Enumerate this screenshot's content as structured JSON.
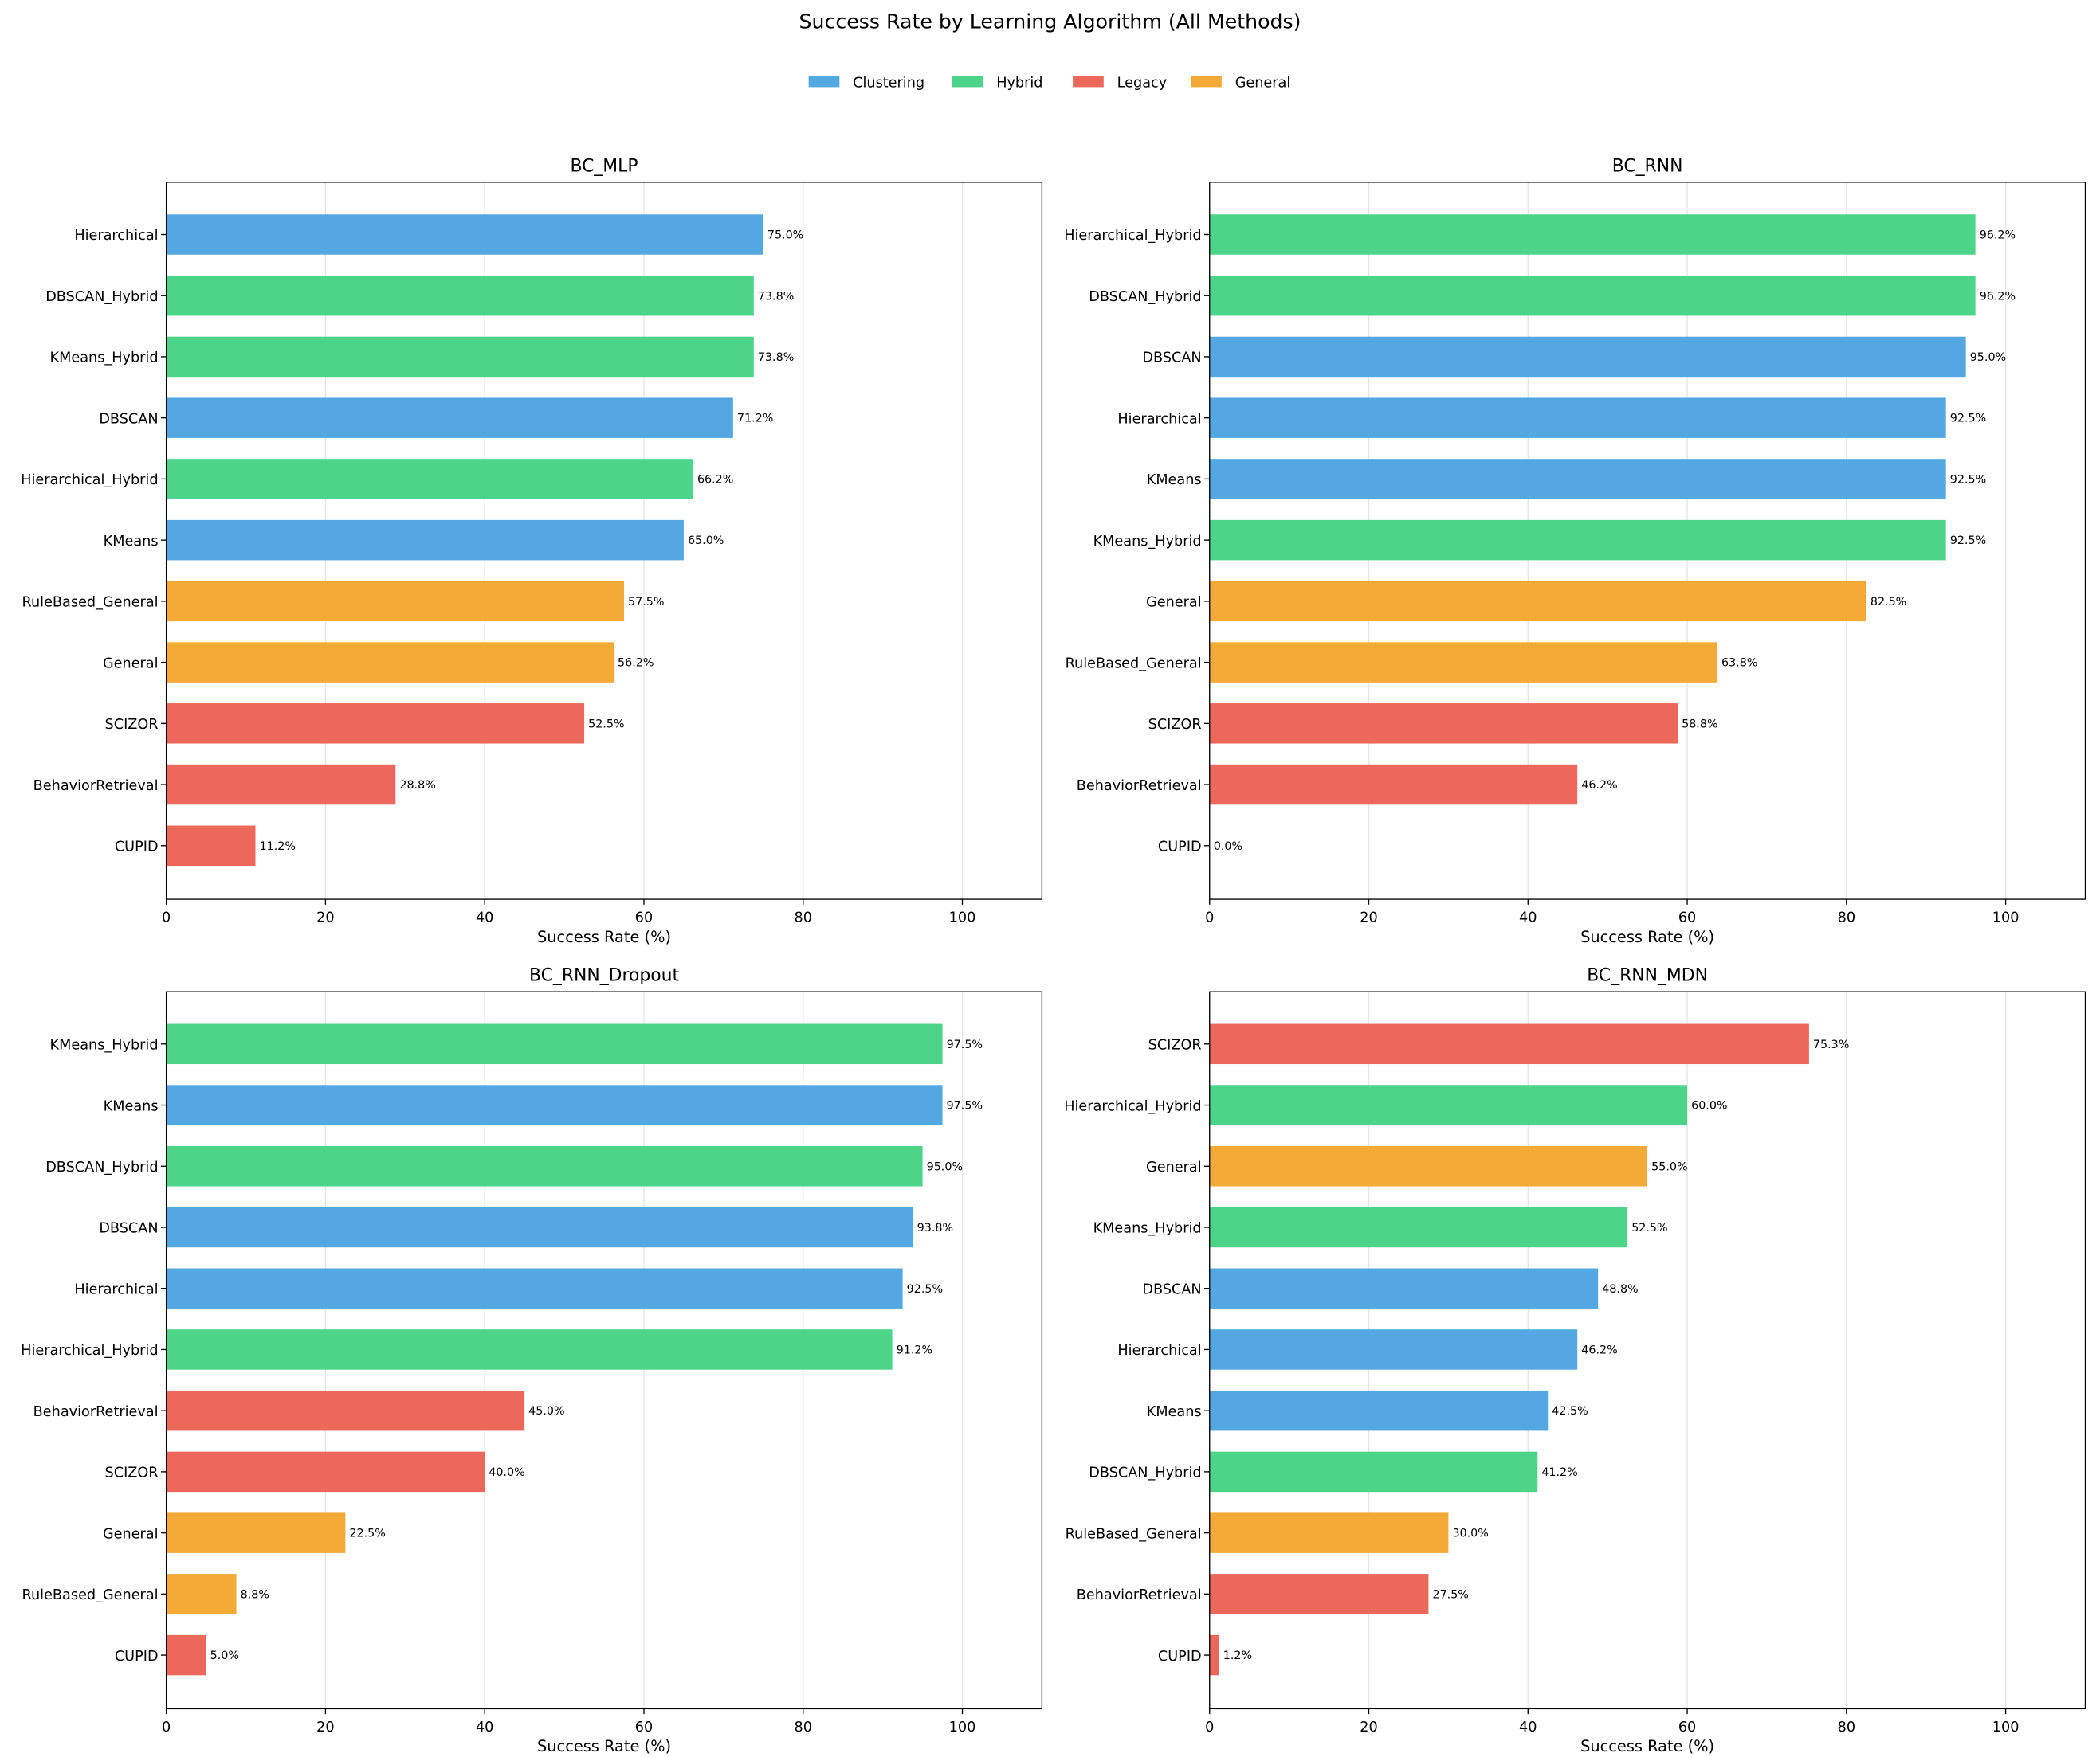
{
  "chart_data": {
    "type": "bar",
    "orientation": "horizontal",
    "title": "Success Rate by Learning Algorithm (All Methods)",
    "legend": {
      "placement": "top-center",
      "entries": [
        {
          "name": "Clustering",
          "color": "#54A8E1"
        },
        {
          "name": "Hybrid",
          "color": "#4CD488"
        },
        {
          "name": "Legacy",
          "color": "#EC685A"
        },
        {
          "name": "General",
          "color": "#F4AA36"
        }
      ]
    },
    "xlabel": "Success Rate (%)",
    "xlim": [
      0,
      110
    ],
    "xticks": [
      "0",
      "20",
      "40",
      "60",
      "80",
      "100"
    ],
    "grid": "x",
    "panels": [
      {
        "title": "BC_MLP",
        "bars": [
          {
            "label": "Hierarchical",
            "category": "Clustering",
            "value": 75.0,
            "text": "75.0%"
          },
          {
            "label": "DBSCAN_Hybrid",
            "category": "Hybrid",
            "value": 73.8,
            "text": "73.8%"
          },
          {
            "label": "KMeans_Hybrid",
            "category": "Hybrid",
            "value": 73.8,
            "text": "73.8%"
          },
          {
            "label": "DBSCAN",
            "category": "Clustering",
            "value": 71.2,
            "text": "71.2%"
          },
          {
            "label": "Hierarchical_Hybrid",
            "category": "Hybrid",
            "value": 66.2,
            "text": "66.2%"
          },
          {
            "label": "KMeans",
            "category": "Clustering",
            "value": 65.0,
            "text": "65.0%"
          },
          {
            "label": "RuleBased_General",
            "category": "General",
            "value": 57.5,
            "text": "57.5%"
          },
          {
            "label": "General",
            "category": "General",
            "value": 56.2,
            "text": "56.2%"
          },
          {
            "label": "SCIZOR",
            "category": "Legacy",
            "value": 52.5,
            "text": "52.5%"
          },
          {
            "label": "BehaviorRetrieval",
            "category": "Legacy",
            "value": 28.8,
            "text": "28.8%"
          },
          {
            "label": "CUPID",
            "category": "Legacy",
            "value": 11.2,
            "text": "11.2%"
          }
        ]
      },
      {
        "title": "BC_RNN",
        "bars": [
          {
            "label": "Hierarchical_Hybrid",
            "category": "Hybrid",
            "value": 96.2,
            "text": "96.2%"
          },
          {
            "label": "DBSCAN_Hybrid",
            "category": "Hybrid",
            "value": 96.2,
            "text": "96.2%"
          },
          {
            "label": "DBSCAN",
            "category": "Clustering",
            "value": 95.0,
            "text": "95.0%"
          },
          {
            "label": "Hierarchical",
            "category": "Clustering",
            "value": 92.5,
            "text": "92.5%"
          },
          {
            "label": "KMeans",
            "category": "Clustering",
            "value": 92.5,
            "text": "92.5%"
          },
          {
            "label": "KMeans_Hybrid",
            "category": "Hybrid",
            "value": 92.5,
            "text": "92.5%"
          },
          {
            "label": "General",
            "category": "General",
            "value": 82.5,
            "text": "82.5%"
          },
          {
            "label": "RuleBased_General",
            "category": "General",
            "value": 63.8,
            "text": "63.8%"
          },
          {
            "label": "SCIZOR",
            "category": "Legacy",
            "value": 58.8,
            "text": "58.8%"
          },
          {
            "label": "BehaviorRetrieval",
            "category": "Legacy",
            "value": 46.2,
            "text": "46.2%"
          },
          {
            "label": "CUPID",
            "category": "Legacy",
            "value": 0.0,
            "text": "0.0%"
          }
        ]
      },
      {
        "title": "BC_RNN_Dropout",
        "bars": [
          {
            "label": "KMeans_Hybrid",
            "category": "Hybrid",
            "value": 97.5,
            "text": "97.5%"
          },
          {
            "label": "KMeans",
            "category": "Clustering",
            "value": 97.5,
            "text": "97.5%"
          },
          {
            "label": "DBSCAN_Hybrid",
            "category": "Hybrid",
            "value": 95.0,
            "text": "95.0%"
          },
          {
            "label": "DBSCAN",
            "category": "Clustering",
            "value": 93.8,
            "text": "93.8%"
          },
          {
            "label": "Hierarchical",
            "category": "Clustering",
            "value": 92.5,
            "text": "92.5%"
          },
          {
            "label": "Hierarchical_Hybrid",
            "category": "Hybrid",
            "value": 91.2,
            "text": "91.2%"
          },
          {
            "label": "BehaviorRetrieval",
            "category": "Legacy",
            "value": 45.0,
            "text": "45.0%"
          },
          {
            "label": "SCIZOR",
            "category": "Legacy",
            "value": 40.0,
            "text": "40.0%"
          },
          {
            "label": "General",
            "category": "General",
            "value": 22.5,
            "text": "22.5%"
          },
          {
            "label": "RuleBased_General",
            "category": "General",
            "value": 8.8,
            "text": "8.8%"
          },
          {
            "label": "CUPID",
            "category": "Legacy",
            "value": 5.0,
            "text": "5.0%"
          }
        ]
      },
      {
        "title": "BC_RNN_MDN",
        "bars": [
          {
            "label": "SCIZOR",
            "category": "Legacy",
            "value": 75.3,
            "text": "75.3%"
          },
          {
            "label": "Hierarchical_Hybrid",
            "category": "Hybrid",
            "value": 60.0,
            "text": "60.0%"
          },
          {
            "label": "General",
            "category": "General",
            "value": 55.0,
            "text": "55.0%"
          },
          {
            "label": "KMeans_Hybrid",
            "category": "Hybrid",
            "value": 52.5,
            "text": "52.5%"
          },
          {
            "label": "DBSCAN",
            "category": "Clustering",
            "value": 48.8,
            "text": "48.8%"
          },
          {
            "label": "Hierarchical",
            "category": "Clustering",
            "value": 46.2,
            "text": "46.2%"
          },
          {
            "label": "KMeans",
            "category": "Clustering",
            "value": 42.5,
            "text": "42.5%"
          },
          {
            "label": "DBSCAN_Hybrid",
            "category": "Hybrid",
            "value": 41.2,
            "text": "41.2%"
          },
          {
            "label": "RuleBased_General",
            "category": "General",
            "value": 30.0,
            "text": "30.0%"
          },
          {
            "label": "BehaviorRetrieval",
            "category": "Legacy",
            "value": 27.5,
            "text": "27.5%"
          },
          {
            "label": "CUPID",
            "category": "Legacy",
            "value": 1.2,
            "text": "1.2%"
          }
        ]
      }
    ]
  }
}
